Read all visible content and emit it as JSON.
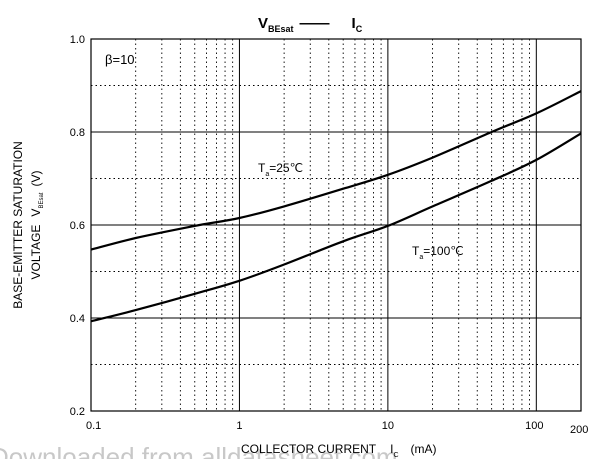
{
  "chart_data": {
    "type": "line",
    "title": {
      "main": "V",
      "main_sub": "BEsat",
      "dash": "——",
      "vs": "I",
      "vs_sub": "C"
    },
    "annotation_beta": "β=10",
    "xlabel": {
      "text": "COLLECTOR CURRENT",
      "sym": "I",
      "sym_sub": "C",
      "unit": "(mA)"
    },
    "ylabel": {
      "line1": "BASE-EMITTER SATURATION",
      "line2_a": "VOLTAGE",
      "line2_sym": "V",
      "line2_sub": "BEsat",
      "line2_unit": "(V)"
    },
    "x_scale": "log",
    "xlim": [
      0.1,
      200
    ],
    "ylim": [
      0.2,
      1.0
    ],
    "x_ticks": [
      {
        "value": 0.1,
        "label": "0.1"
      },
      {
        "value": 1,
        "label": "1"
      },
      {
        "value": 10,
        "label": "10"
      },
      {
        "value": 100,
        "label": "100"
      },
      {
        "value": 200,
        "label": "200"
      }
    ],
    "y_ticks": [
      {
        "value": 0.2,
        "label": "0.2"
      },
      {
        "value": 0.4,
        "label": "0.4"
      },
      {
        "value": 0.6,
        "label": "0.6"
      },
      {
        "value": 0.8,
        "label": "0.8"
      },
      {
        "value": 1.0,
        "label": "1.0"
      }
    ],
    "grid": "major solid, minor dotted",
    "series": [
      {
        "name": "Ta=25°C",
        "label": {
          "sym": "T",
          "sub": "a",
          "text": "=25℃"
        },
        "x": [
          0.1,
          0.2,
          0.5,
          1,
          2,
          5,
          10,
          20,
          50,
          100,
          200
        ],
        "y": [
          0.547,
          0.572,
          0.598,
          0.615,
          0.64,
          0.678,
          0.708,
          0.745,
          0.8,
          0.84,
          0.888
        ]
      },
      {
        "name": "Ta=100°C",
        "label": {
          "sym": "T",
          "sub": "a",
          "text": "=100℃"
        },
        "x": [
          0.1,
          0.2,
          0.5,
          1,
          2,
          5,
          10,
          20,
          50,
          100,
          200
        ],
        "y": [
          0.393,
          0.417,
          0.452,
          0.48,
          0.515,
          0.565,
          0.598,
          0.64,
          0.695,
          0.74,
          0.797
        ]
      }
    ]
  },
  "watermark": "Downloaded from alldatasheet.com"
}
